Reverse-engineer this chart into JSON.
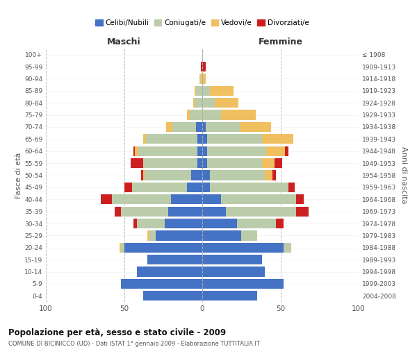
{
  "age_groups": [
    "0-4",
    "5-9",
    "10-14",
    "15-19",
    "20-24",
    "25-29",
    "30-34",
    "35-39",
    "40-44",
    "45-49",
    "50-54",
    "55-59",
    "60-64",
    "65-69",
    "70-74",
    "75-79",
    "80-84",
    "85-89",
    "90-94",
    "95-99",
    "100+"
  ],
  "birth_years": [
    "2004-2008",
    "1999-2003",
    "1994-1998",
    "1989-1993",
    "1984-1988",
    "1979-1983",
    "1974-1978",
    "1969-1973",
    "1964-1968",
    "1959-1963",
    "1954-1958",
    "1949-1953",
    "1944-1948",
    "1939-1943",
    "1934-1938",
    "1929-1933",
    "1924-1928",
    "1919-1923",
    "1914-1918",
    "1909-1913",
    "≤ 1908"
  ],
  "maschi": {
    "celibi": [
      38,
      52,
      42,
      35,
      50,
      30,
      24,
      22,
      20,
      10,
      7,
      3,
      3,
      3,
      4,
      0,
      0,
      0,
      0,
      0,
      0
    ],
    "coniugati": [
      0,
      0,
      0,
      0,
      2,
      4,
      18,
      30,
      38,
      35,
      30,
      35,
      38,
      33,
      15,
      8,
      5,
      4,
      1,
      0,
      0
    ],
    "vedovi": [
      0,
      0,
      0,
      0,
      1,
      1,
      0,
      0,
      0,
      0,
      1,
      0,
      2,
      2,
      4,
      2,
      1,
      1,
      1,
      0,
      0
    ],
    "divorziati": [
      0,
      0,
      0,
      0,
      0,
      0,
      2,
      4,
      7,
      5,
      1,
      8,
      1,
      0,
      0,
      0,
      0,
      0,
      0,
      1,
      0
    ]
  },
  "femmine": {
    "nubili": [
      35,
      52,
      40,
      38,
      52,
      25,
      22,
      15,
      12,
      5,
      5,
      3,
      3,
      3,
      2,
      0,
      0,
      0,
      0,
      0,
      0
    ],
    "coniugate": [
      0,
      0,
      0,
      0,
      5,
      10,
      25,
      45,
      48,
      50,
      35,
      35,
      38,
      35,
      22,
      12,
      8,
      5,
      0,
      0,
      0
    ],
    "vedove": [
      0,
      0,
      0,
      0,
      0,
      0,
      0,
      0,
      0,
      0,
      5,
      8,
      12,
      20,
      20,
      22,
      15,
      15,
      2,
      0,
      0
    ],
    "divorziate": [
      0,
      0,
      0,
      0,
      0,
      0,
      5,
      8,
      5,
      4,
      2,
      5,
      2,
      0,
      0,
      0,
      0,
      0,
      0,
      2,
      0
    ]
  },
  "colors": {
    "celibi": "#4472C4",
    "coniugati": "#BBCCAA",
    "vedovi": "#F0C060",
    "divorziati": "#CC2020"
  },
  "title": "Popolazione per età, sesso e stato civile - 2009",
  "subtitle": "COMUNE DI BICINICCO (UD) - Dati ISTAT 1° gennaio 2009 - Elaborazione TUTTITALIA.IT",
  "xlabel_left": "Maschi",
  "xlabel_right": "Femmine",
  "ylabel_left": "Fasce di età",
  "ylabel_right": "Anni di nascita",
  "xlim": 100,
  "bg_color": "#ffffff",
  "grid_color": "#bbbbbb",
  "legend_labels": [
    "Celibi/Nubili",
    "Coniugati/e",
    "Vedovi/e",
    "Divorziati/e"
  ]
}
